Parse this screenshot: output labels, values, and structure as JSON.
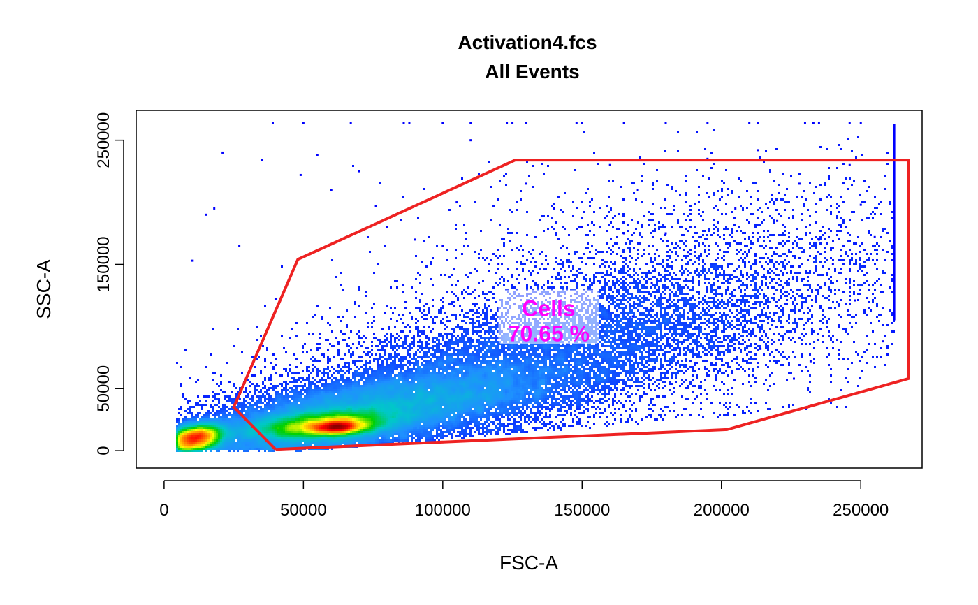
{
  "chart_data": {
    "type": "scatter",
    "title": "Activation4.fcs",
    "subtitle": "All Events",
    "xlabel": "FSC-A",
    "ylabel": "SSC-A",
    "xlim": [
      -10000,
      272000
    ],
    "ylim": [
      -14000,
      274000
    ],
    "xticks": [
      0,
      50000,
      100000,
      150000,
      200000,
      250000
    ],
    "yticks": [
      0,
      50000,
      150000,
      250000
    ],
    "grid": false,
    "legend": "none",
    "density_colors": [
      "#0000ff",
      "#1e90ff",
      "#00c8c8",
      "#00d000",
      "#ffff00",
      "#ff8000",
      "#ff0000",
      "#8b0000"
    ],
    "populations": [
      {
        "cx": 62000,
        "cy": 19000,
        "sx": 5500,
        "sy": 2800,
        "weight": 0.07,
        "corr": 0.2
      },
      {
        "cx": 57000,
        "cy": 20000,
        "sx": 14000,
        "sy": 6500,
        "weight": 0.2,
        "corr": 0.35
      },
      {
        "cx": 11000,
        "cy": 10000,
        "sx": 5500,
        "sy": 5500,
        "weight": 0.15,
        "corr": 0.3
      },
      {
        "cx": 75000,
        "cy": 33000,
        "sx": 34000,
        "sy": 17000,
        "weight": 0.25,
        "corr": 0.6
      },
      {
        "cx": 125000,
        "cy": 70000,
        "sx": 48000,
        "sy": 34000,
        "weight": 0.17,
        "corr": 0.65
      },
      {
        "cx": 185000,
        "cy": 125000,
        "sx": 50000,
        "sy": 48000,
        "weight": 0.06,
        "corr": 0.3
      }
    ],
    "sparse_points": [
      [
        10000,
        153000
      ],
      [
        15000,
        190000
      ],
      [
        18000,
        195000
      ],
      [
        21000,
        240000
      ],
      [
        27000,
        165000
      ],
      [
        35000,
        234000
      ],
      [
        40000,
        122000
      ],
      [
        49000,
        222000
      ],
      [
        55000,
        238000
      ],
      [
        60000,
        210000
      ],
      [
        70000,
        225000
      ],
      [
        76000,
        197000
      ],
      [
        80000,
        180000
      ],
      [
        90000,
        170000
      ],
      [
        100000,
        165000
      ],
      [
        105000,
        200000
      ],
      [
        110000,
        250000
      ],
      [
        120000,
        150000
      ],
      [
        130000,
        215000
      ],
      [
        140000,
        195000
      ],
      [
        150000,
        180000
      ],
      [
        160000,
        230000
      ],
      [
        165000,
        175000
      ],
      [
        170000,
        210000
      ],
      [
        180000,
        175000
      ],
      [
        188000,
        160000
      ],
      [
        195000,
        235000
      ],
      [
        205000,
        195000
      ],
      [
        213000,
        242000
      ],
      [
        220000,
        185000
      ],
      [
        228000,
        215000
      ],
      [
        235000,
        170000
      ],
      [
        240000,
        150000
      ],
      [
        246000,
        230000
      ],
      [
        250000,
        198000
      ],
      [
        255000,
        172000
      ],
      [
        258000,
        88000
      ],
      [
        226000,
        58000
      ],
      [
        232000,
        72000
      ],
      [
        214000,
        82000
      ],
      [
        248000,
        121000
      ],
      [
        243000,
        180000
      ],
      [
        198000,
        145000
      ],
      [
        175000,
        135000
      ],
      [
        168000,
        108000
      ]
    ],
    "saturated_points": [
      [
        39000,
        264000
      ],
      [
        50000,
        264000
      ],
      [
        67000,
        264000
      ],
      [
        86000,
        264000
      ],
      [
        88000,
        264000
      ],
      [
        100000,
        264000
      ],
      [
        110000,
        264000
      ],
      [
        123000,
        264000
      ],
      [
        125000,
        264000
      ],
      [
        130000,
        264000
      ],
      [
        148000,
        264000
      ],
      [
        150000,
        264000
      ],
      [
        165000,
        264000
      ],
      [
        180000,
        264000
      ],
      [
        195000,
        264000
      ],
      [
        210000,
        264000
      ],
      [
        213000,
        264000
      ],
      [
        230000,
        264000
      ],
      [
        233000,
        264000
      ],
      [
        235000,
        264000
      ],
      [
        246000,
        264000
      ],
      [
        250000,
        264000
      ]
    ],
    "edge_column": {
      "x": 262000,
      "y_from": 105000,
      "y_to": 263000
    },
    "gates": [
      {
        "name": "Cells",
        "label": "Cells",
        "percent_label": "70.65 %",
        "label_x": 138000,
        "label_y": 115000,
        "color": "#ee2222",
        "label_color": "#ff00ff",
        "vertices": [
          [
            40000,
            1000
          ],
          [
            25000,
            35000
          ],
          [
            48000,
            154000
          ],
          [
            126000,
            234000
          ],
          [
            267000,
            234000
          ],
          [
            267000,
            58000
          ],
          [
            202000,
            17000
          ],
          [
            40000,
            1000
          ]
        ]
      }
    ]
  }
}
